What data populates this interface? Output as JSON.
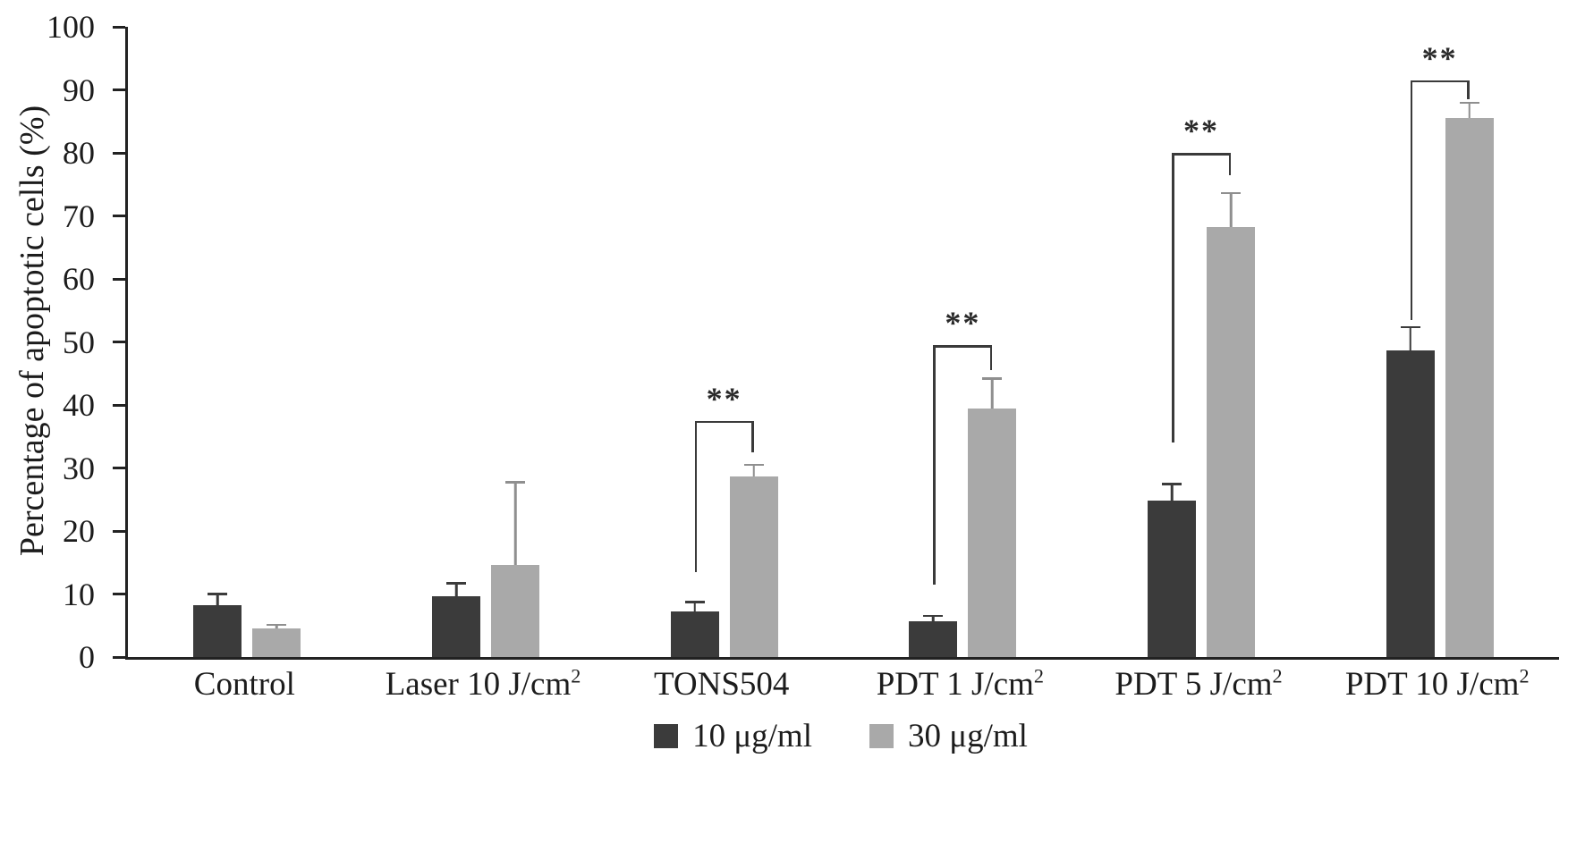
{
  "chart_data": {
    "type": "bar",
    "title": "",
    "ylabel": "Percentage of apoptotic cells (%)",
    "xlabel": "",
    "ylim": [
      0,
      100
    ],
    "ytick_step": 10,
    "grid": false,
    "legend_position": "bottom",
    "background": "#ffffff",
    "axis_color": "#222222",
    "categories": [
      {
        "label": "Control",
        "sup": ""
      },
      {
        "label": "Laser 10 J/cm",
        "sup": "2"
      },
      {
        "label": "TONS504",
        "sup": ""
      },
      {
        "label": "PDT 1 J/cm",
        "sup": "2"
      },
      {
        "label": "PDT 5 J/cm",
        "sup": "2"
      },
      {
        "label": "PDT 10 J/cm",
        "sup": "2"
      }
    ],
    "series": [
      {
        "name": "10 μg/ml",
        "color": "#3b3b3b",
        "error_color": "#3b3b3b",
        "values": [
          8.2,
          9.7,
          7.2,
          5.7,
          24.8,
          48.6
        ],
        "errors": [
          2.0,
          2.2,
          1.7,
          1.0,
          2.8,
          3.9
        ]
      },
      {
        "name": "30 μg/ml",
        "color": "#a9a9a9",
        "error_color": "#8f8f8f",
        "values": [
          4.6,
          14.6,
          28.7,
          39.5,
          68.2,
          85.5
        ],
        "errors": [
          0.7,
          13.3,
          2.0,
          4.9,
          5.6,
          2.6
        ]
      }
    ],
    "significance": [
      {
        "group_index": 2,
        "marker": "**",
        "top": 37.5,
        "left_bottom": 13.5,
        "right_bottom": 32.5
      },
      {
        "group_index": 3,
        "marker": "**",
        "top": 49.5,
        "left_bottom": 11.5,
        "right_bottom": 45.5
      },
      {
        "group_index": 4,
        "marker": "**",
        "top": 80.0,
        "left_bottom": 34.0,
        "right_bottom": 76.5
      },
      {
        "group_index": 5,
        "marker": "**",
        "top": 91.5,
        "left_bottom": 53.5,
        "right_bottom": 88.5
      }
    ]
  }
}
